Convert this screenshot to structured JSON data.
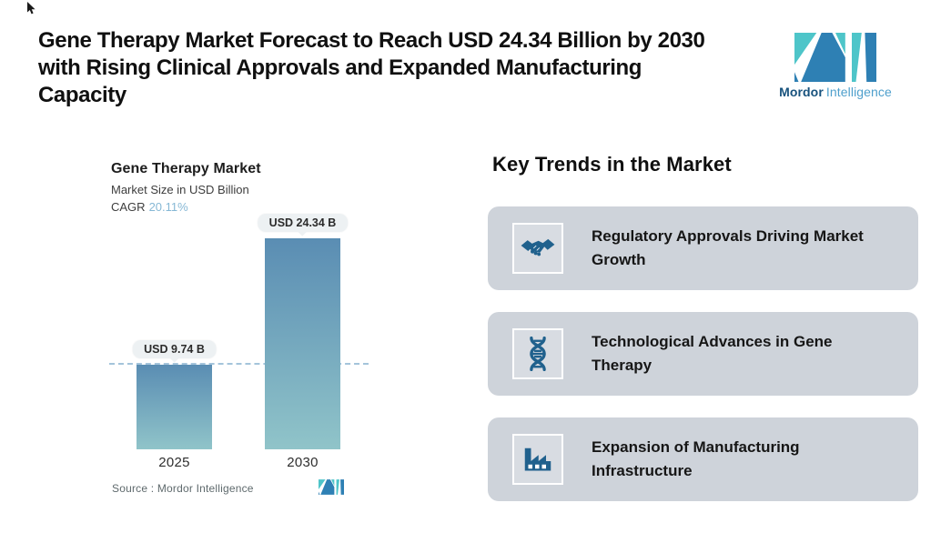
{
  "header": {
    "title_lines": [
      "Gene Therapy Market Forecast to Reach USD 24.34 Billion by 2030",
      "with Rising Clinical Approvals and Expanded Manufacturing",
      "Capacity"
    ]
  },
  "brand": {
    "primary": "Mordor",
    "secondary": "Intelligence"
  },
  "chart": {
    "title": "Gene Therapy Market",
    "subtitle": "Market Size in USD Billion",
    "cagr_label": "CAGR",
    "cagr_value": "20.11%",
    "source": "Source :  Mordor Intelligence"
  },
  "chart_data": {
    "type": "bar",
    "title": "Gene Therapy Market",
    "ylabel": "Market Size in USD Billion",
    "categories": [
      "2025",
      "2030"
    ],
    "values": [
      9.74,
      24.34
    ],
    "value_labels": [
      "USD 9.74 B",
      "USD 24.34 B"
    ],
    "unit": "USD Billion",
    "cagr_percent": 20.11,
    "ylim": [
      0,
      26
    ],
    "grid": false,
    "legend": "none",
    "annotations": [
      "horizontal dashed reference line at 2025 value (9.74)"
    ]
  },
  "trends": {
    "heading": "Key Trends in the Market",
    "cards": [
      {
        "icon": "handshake-icon",
        "label": "Regulatory Approvals Driving Market Growth"
      },
      {
        "icon": "dna-icon",
        "label": "Technological Advances in Gene Therapy"
      },
      {
        "icon": "factory-icon",
        "label": "Expansion of Manufacturing Infrastructure"
      }
    ]
  },
  "theme": {
    "teal": "#4EC5C9",
    "blue": "#2E80B4",
    "brand_dark": "#17527D",
    "brand_light": "#4E9FCC",
    "bar_top": "#5A8DB3",
    "bar_bottom": "#90C4C9",
    "dashed": "#A4C4DB",
    "cagr": "#86B8D5",
    "pill_bg": "#EDF1F3",
    "card_bg": "#CED3DA",
    "icon_blue": "#20618D"
  }
}
